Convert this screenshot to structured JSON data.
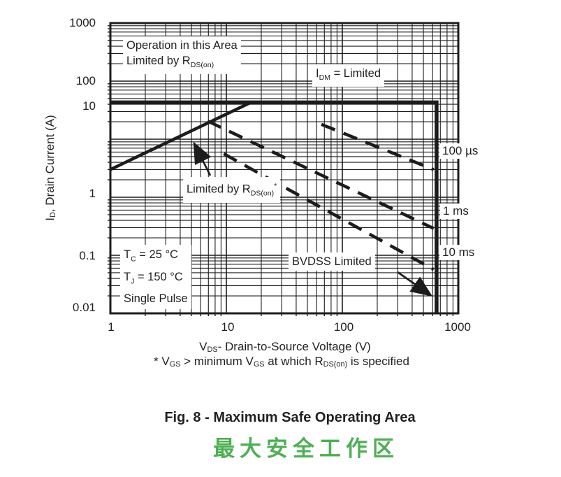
{
  "chart_data": {
    "type": "line",
    "title": "Fig. 8 - Maximum Safe Operating Area",
    "title_cn": "最大安全工作区",
    "title_cn_color": "#4cb052",
    "xlabel": "VDS - Drain-to-Source Voltage (V)",
    "ylabel": "ID, Drain Current (A)",
    "x_scale": "log",
    "y_scale": "log",
    "xlim": [
      1,
      1000
    ],
    "ylim": [
      0.01,
      1000
    ],
    "x_tick_labels": [
      "1",
      "10",
      "100",
      "1000"
    ],
    "y_tick_labels": [
      "1000",
      "100",
      "10",
      "1",
      "0.1",
      "0.01"
    ],
    "grid": "on",
    "series": [
      {
        "name": "idm-boundary",
        "style": "solid-thick",
        "points": [
          [
            1,
            43
          ],
          [
            650,
            43
          ],
          [
            650,
            0.01
          ]
        ]
      },
      {
        "name": "rdson-limit",
        "style": "solid",
        "points": [
          [
            1,
            3.0
          ],
          [
            16.3,
            43
          ]
        ]
      },
      {
        "name": "pulse-100us",
        "style": "dashed",
        "points": [
          [
            66,
            18
          ],
          [
            613,
            3.0
          ]
        ]
      },
      {
        "name": "pulse-1ms",
        "style": "dashed",
        "points": [
          [
            6.9,
            20.5
          ],
          [
            613,
            0.29
          ]
        ]
      },
      {
        "name": "pulse-10ms",
        "style": "dashed",
        "points": [
          [
            9.5,
            5.6
          ],
          [
            613,
            0.057
          ]
        ]
      }
    ],
    "curve_labels": [
      "100 µs",
      "1 ms",
      "10 ms"
    ]
  },
  "axes": {
    "y_title": {
      "pre": "I",
      "sub": "D",
      "post": ", Drain Current (A)"
    },
    "x_title": {
      "pre": "V",
      "sub": "DS",
      "post": "- Drain-to-Source Voltage (V)"
    },
    "x_ticks": {
      "t0": "1",
      "t1": "10",
      "t2": "100",
      "t3": "1000"
    },
    "y_ticks": {
      "t0": "1000",
      "t1": "100",
      "t2": "10",
      "t3": "1",
      "t4": "0.1",
      "t5": "0.01"
    }
  },
  "annotations": {
    "operation": {
      "line1": "Operation in this Area",
      "line2_pre": "Limited by R",
      "line2_sub": "DS(on)"
    },
    "idm": {
      "pre": "I",
      "sub": "DM",
      "post": " = Limited"
    },
    "limited_by": {
      "pre": "Limited by R",
      "sub": "DS(on)",
      "star": "*"
    },
    "conditions": {
      "tc_pre": "T",
      "tc_sub": "C",
      "tc_post": " = 25 °C",
      "tj_pre": "T",
      "tj_sub": "J",
      "tj_post": " = 150 °C",
      "pulse": "Single Pulse"
    },
    "bvdss": "BVDSS Limited",
    "label_100us": "100 µs",
    "label_1ms": "1 ms",
    "label_10ms": "10 ms"
  },
  "footnote": {
    "star": "* ",
    "pre": "V",
    "sub1": "GS",
    "mid1": " > minimum V",
    "sub2": "GS",
    "mid2": " at which R",
    "sub3": "DS(on)",
    "end": " is specified"
  },
  "caption": {
    "en": "Fig. 8 - Maximum Safe Operating Area",
    "cn": "最大安全工作区"
  },
  "colors": {
    "ink": "#1c1c1c",
    "green": "#4cb052"
  }
}
